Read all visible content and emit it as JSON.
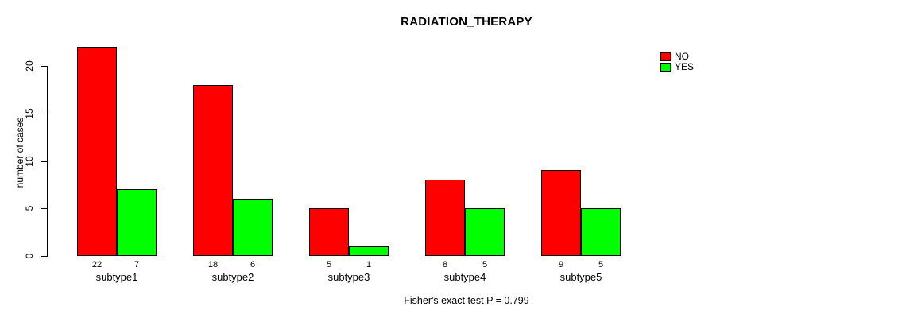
{
  "chart_data": {
    "type": "bar",
    "title": "RADIATION_THERAPY",
    "categories": [
      "subtype1",
      "subtype2",
      "subtype3",
      "subtype4",
      "subtype5"
    ],
    "series": [
      {
        "name": "NO",
        "color": "#FF0000",
        "values": [
          22,
          18,
          5,
          8,
          9
        ]
      },
      {
        "name": "YES",
        "color": "#00FF00",
        "values": [
          7,
          6,
          1,
          5,
          5
        ]
      }
    ],
    "xlabel": "",
    "ylabel": "number of cases",
    "ylim": [
      0,
      22
    ],
    "yticks": [
      0,
      5,
      10,
      15,
      20
    ],
    "show_bar_value_labels": true,
    "grid": false,
    "legend_position": "top-right",
    "annotation": "Fisher's exact test P = 0.799",
    "bar_border_color": "#000000",
    "background_color": "#FFFFFF"
  }
}
